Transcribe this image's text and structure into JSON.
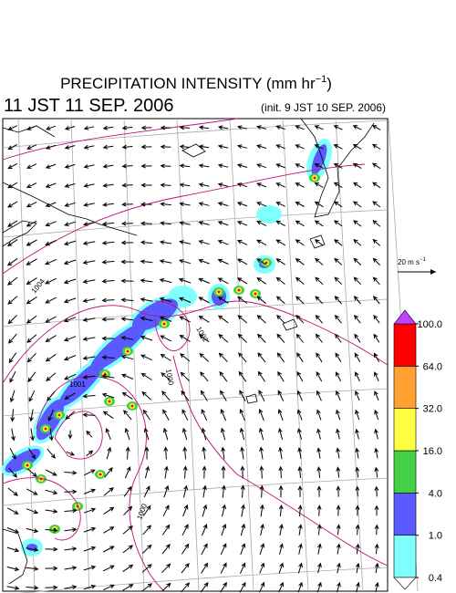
{
  "header": {
    "title_parts": [
      "PRECIPITATION INTENSITY (mm hr",
      "−1",
      ")"
    ],
    "valid_time": "11 JST 11 SEP. 2006",
    "init_time": "(init. 9 JST 10 SEP. 2006)"
  },
  "reference_vector": {
    "label_parts": [
      "20 m s",
      "−1"
    ]
  },
  "colorbar": {
    "levels": [
      0.4,
      {
        "value": 1,
        "label": "1.0"
      },
      {
        "value": 4,
        "label": "4.0"
      },
      {
        "value": 16,
        "label": "16.0"
      },
      {
        "value": 32,
        "label": "32.0"
      },
      {
        "value": 64,
        "label": "64.0"
      },
      {
        "value": 100,
        "label": "100.0"
      }
    ],
    "colors": [
      "#80ffff",
      "#5a5aff",
      "#44d044",
      "#ffff44",
      "#ffa030",
      "#ff0000"
    ],
    "over_color": "#c040ff",
    "under_color": "#ffffff"
  },
  "contour_labels": [
    "1004",
    "1002",
    "1001",
    "1000",
    "1000"
  ]
}
